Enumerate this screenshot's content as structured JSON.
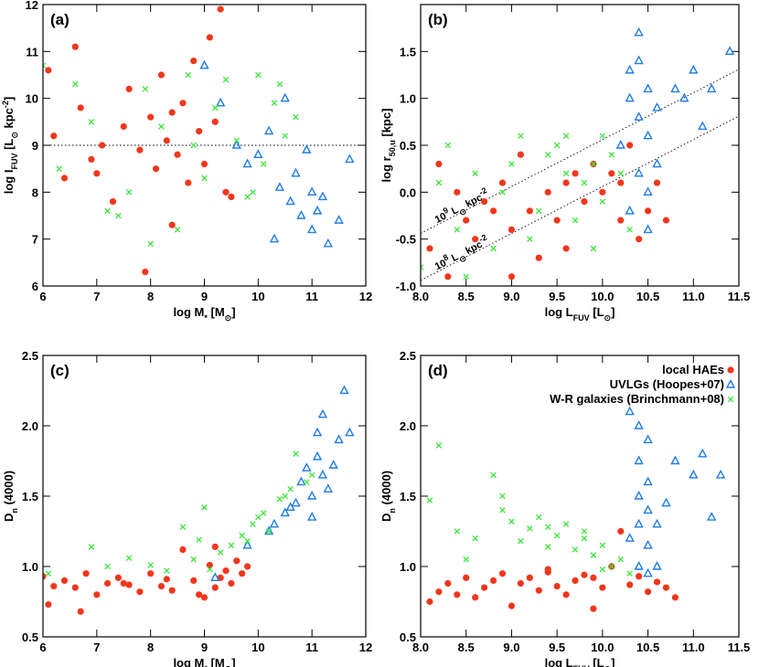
{
  "chart_data": [
    {
      "type": "scatter",
      "panel_label": "(a)",
      "xlabel": "log M_{*} [M_{⊙}]",
      "ylabel": "log I_{FUV} [L_{⊙} kpc^{-2}]",
      "xlim": [
        6,
        12
      ],
      "ylim": [
        6,
        12
      ],
      "xticks": [
        6,
        7,
        8,
        9,
        10,
        11,
        12
      ],
      "yticks": [
        6,
        7,
        8,
        9,
        10,
        11,
        12
      ],
      "reference_lines": [
        {
          "x": [
            6,
            12
          ],
          "y": [
            9,
            9
          ]
        }
      ],
      "series": [
        {
          "color": "#f2361c",
          "marker": "circle",
          "x": [
            6.1,
            6.2,
            6.4,
            6.6,
            6.7,
            6.9,
            7.1,
            7.3,
            7.5,
            7.6,
            7.8,
            7.9,
            8.0,
            8.1,
            8.2,
            8.3,
            8.4,
            8.5,
            8.6,
            8.7,
            8.8,
            8.9,
            9.0,
            9.1,
            9.2,
            9.3,
            9.4,
            9.5,
            7.0,
            8.4
          ],
          "y": [
            10.6,
            9.2,
            8.3,
            11.1,
            9.8,
            8.7,
            9.0,
            7.8,
            9.4,
            10.2,
            8.9,
            6.3,
            9.6,
            8.5,
            10.5,
            9.1,
            7.3,
            8.8,
            9.9,
            8.2,
            10.8,
            9.3,
            8.6,
            11.3,
            9.5,
            11.9,
            8.0,
            7.9,
            8.4,
            9.7
          ]
        },
        {
          "color": "#1f7ce8",
          "marker": "triangle",
          "x": [
            9.0,
            9.3,
            9.6,
            9.8,
            10.0,
            10.2,
            10.4,
            10.5,
            10.6,
            10.7,
            10.8,
            10.9,
            11.0,
            11.0,
            11.1,
            11.2,
            11.3,
            11.5,
            11.7,
            10.3
          ],
          "y": [
            10.7,
            9.9,
            9.0,
            8.6,
            8.8,
            9.3,
            8.1,
            10.0,
            7.8,
            8.4,
            7.5,
            8.9,
            7.2,
            8.0,
            7.6,
            7.9,
            6.9,
            7.4,
            8.7,
            7.0
          ]
        },
        {
          "color": "#3ae63a",
          "marker": "x",
          "x": [
            6.0,
            6.3,
            6.6,
            6.9,
            7.2,
            7.6,
            7.9,
            8.2,
            8.5,
            8.7,
            9.0,
            9.2,
            9.4,
            9.6,
            9.8,
            10.0,
            10.1,
            10.3,
            10.5,
            10.7,
            8.0,
            7.4,
            9.9,
            10.4,
            8.8
          ],
          "y": [
            10.7,
            8.5,
            10.3,
            9.5,
            7.6,
            8.0,
            10.2,
            9.4,
            7.2,
            10.5,
            8.3,
            9.8,
            10.4,
            9.1,
            7.9,
            10.5,
            8.6,
            9.9,
            9.2,
            9.6,
            6.9,
            7.5,
            8.0,
            10.3,
            9.0
          ]
        }
      ]
    },
    {
      "type": "scatter",
      "panel_label": "(b)",
      "xlabel": "log L_{FUV} [L_{⊙}]",
      "ylabel": "log r_{50,u} [kpc]",
      "xlim": [
        8.0,
        11.5
      ],
      "ylim": [
        -1.0,
        2.0
      ],
      "xticks": [
        {
          "value": 8,
          "label": "8.0"
        },
        8.5,
        {
          "value": 9,
          "label": "9.0"
        },
        9.5,
        {
          "value": 10,
          "label": "10.0"
        },
        10.5,
        {
          "value": 11,
          "label": "11.0"
        },
        11.5
      ],
      "yticks": [
        {
          "value": -1,
          "label": "-1.0"
        },
        -0.5,
        {
          "value": 0,
          "label": "0.0"
        },
        0.5,
        {
          "value": 1,
          "label": "1.0"
        },
        1.5
      ],
      "reference_lines": [
        {
          "x": [
            8.0,
            11.5
          ],
          "y": [
            -0.44,
            1.31
          ],
          "label": "10^{9} L_{⊙} kpc^{-2}"
        },
        {
          "x": [
            8.0,
            11.5
          ],
          "y": [
            -0.94,
            0.81
          ],
          "label": "10^{8} L_{⊙} kpc^{-2}"
        }
      ],
      "series": [
        {
          "color": "#f2361c",
          "marker": "circle",
          "x": [
            8.1,
            8.2,
            8.3,
            8.5,
            8.6,
            8.7,
            8.9,
            9.0,
            9.1,
            9.2,
            9.3,
            9.4,
            9.5,
            9.6,
            9.7,
            9.8,
            9.9,
            10.0,
            10.1,
            10.2,
            10.3,
            10.4,
            10.5,
            10.6,
            10.7,
            8.4,
            9.0,
            9.6,
            10.2,
            8.8
          ],
          "y": [
            -0.6,
            0.3,
            -0.9,
            -0.3,
            -0.5,
            -0.1,
            0.1,
            -0.4,
            0.4,
            -0.2,
            -0.7,
            0.0,
            -0.3,
            0.1,
            0.2,
            -0.1,
            0.3,
            0.0,
            0.2,
            -0.3,
            0.5,
            -0.5,
            -0.2,
            0.1,
            -0.3,
            0.0,
            -0.9,
            -0.6,
            0.1,
            -0.2
          ]
        },
        {
          "color": "#1f7ce8",
          "marker": "triangle",
          "x": [
            10.2,
            10.3,
            10.3,
            10.4,
            10.4,
            10.4,
            10.5,
            10.5,
            10.5,
            10.6,
            10.6,
            10.3,
            10.4,
            10.8,
            11.0,
            11.2,
            11.4,
            11.1,
            10.9,
            10.5
          ],
          "y": [
            0.5,
            1.3,
            -0.2,
            1.7,
            0.8,
            0.2,
            1.1,
            0.6,
            -0.4,
            0.9,
            0.3,
            1.0,
            1.4,
            1.1,
            1.3,
            1.1,
            1.5,
            0.7,
            1.0,
            0.0
          ]
        },
        {
          "color": "#3ae63a",
          "marker": "x",
          "x": [
            8.0,
            8.2,
            8.4,
            8.6,
            8.8,
            9.0,
            9.1,
            9.3,
            9.4,
            9.5,
            9.6,
            9.7,
            9.8,
            9.9,
            10.0,
            10.1,
            10.2,
            10.3,
            8.5,
            8.9,
            9.2,
            9.6,
            10.0,
            8.3,
            9.9
          ],
          "y": [
            -0.8,
            0.1,
            -0.4,
            0.2,
            -0.6,
            0.3,
            0.6,
            -0.2,
            0.4,
            0.5,
            0.6,
            -0.3,
            0.1,
            0.3,
            -0.1,
            0.4,
            0.2,
            -0.4,
            -0.9,
            0.0,
            -0.5,
            0.2,
            0.6,
            0.5,
            -0.6
          ]
        }
      ]
    },
    {
      "type": "scatter",
      "panel_label": "(c)",
      "xlabel": "log M_{*} [M_{⊙}]",
      "ylabel": "D_{n} (4000)",
      "xlim": [
        6,
        12
      ],
      "ylim": [
        0.5,
        2.5
      ],
      "xticks": [
        6,
        7,
        8,
        9,
        10,
        11,
        12
      ],
      "yticks": [
        0.5,
        {
          "value": 1,
          "label": "1.0"
        },
        1.5,
        {
          "value": 2,
          "label": "2.0"
        },
        2.5
      ],
      "series": [
        {
          "color": "#f2361c",
          "marker": "circle",
          "x": [
            6.0,
            6.2,
            6.4,
            6.6,
            6.8,
            7.0,
            7.2,
            7.4,
            7.6,
            7.8,
            8.0,
            8.2,
            8.4,
            8.6,
            8.8,
            9.0,
            9.1,
            9.2,
            9.3,
            9.4,
            9.5,
            9.6,
            9.7,
            9.8,
            6.1,
            6.7,
            7.5,
            8.3,
            8.9,
            9.2
          ],
          "y": [
            0.93,
            0.86,
            0.9,
            0.85,
            0.95,
            0.8,
            0.88,
            0.92,
            0.87,
            0.82,
            0.95,
            0.86,
            0.83,
            1.12,
            0.9,
            0.78,
            1.01,
            0.85,
            0.92,
            0.97,
            0.88,
            1.04,
            0.95,
            1.0,
            0.73,
            0.68,
            0.88,
            0.91,
            0.8,
            1.14
          ]
        },
        {
          "color": "#1f7ce8",
          "marker": "triangle",
          "x": [
            9.2,
            9.8,
            10.2,
            10.5,
            10.7,
            10.8,
            10.9,
            11.0,
            11.0,
            11.1,
            11.1,
            11.2,
            11.2,
            11.3,
            11.4,
            11.5,
            11.6,
            11.7,
            10.6,
            10.3
          ],
          "y": [
            0.92,
            1.15,
            1.25,
            1.38,
            1.45,
            1.6,
            1.7,
            1.35,
            1.5,
            1.95,
            1.78,
            1.65,
            2.08,
            1.55,
            1.72,
            1.9,
            2.25,
            1.95,
            1.42,
            1.3
          ]
        },
        {
          "color": "#3ae63a",
          "marker": "x",
          "x": [
            6.1,
            6.9,
            7.2,
            7.6,
            8.0,
            8.3,
            8.6,
            8.9,
            9.1,
            9.3,
            9.5,
            9.7,
            9.9,
            10.0,
            10.2,
            10.4,
            10.5,
            10.7,
            10.9,
            11.0,
            9.0,
            9.8,
            10.1,
            10.6,
            8.8
          ],
          "y": [
            0.95,
            1.14,
            1.0,
            1.06,
            1.01,
            0.97,
            1.28,
            1.19,
            0.98,
            1.1,
            1.15,
            1.22,
            1.3,
            1.35,
            1.25,
            1.48,
            1.5,
            1.8,
            1.6,
            1.65,
            1.42,
            1.18,
            1.38,
            1.55,
            1.05
          ]
        }
      ]
    },
    {
      "type": "scatter",
      "panel_label": "(d)",
      "xlabel": "log L_{FUV} [L_{⊙}]",
      "ylabel": "D_{n} (4000)",
      "xlim": [
        8.0,
        11.5
      ],
      "ylim": [
        0.5,
        2.5
      ],
      "xticks": [
        {
          "value": 8,
          "label": "8.0"
        },
        8.5,
        {
          "value": 9,
          "label": "9.0"
        },
        9.5,
        {
          "value": 10,
          "label": "10.0"
        },
        10.5,
        {
          "value": 11,
          "label": "11.0"
        },
        11.5
      ],
      "yticks": [
        0.5,
        {
          "value": 1,
          "label": "1.0"
        },
        1.5,
        {
          "value": 2,
          "label": "2.0"
        },
        2.5
      ],
      "legend": "upper right",
      "series": [
        {
          "name": "local HAEs",
          "color": "#f2361c",
          "marker": "circle",
          "x": [
            8.1,
            8.2,
            8.3,
            8.4,
            8.5,
            8.6,
            8.7,
            8.8,
            8.9,
            9.0,
            9.1,
            9.2,
            9.3,
            9.4,
            9.5,
            9.6,
            9.7,
            9.8,
            9.9,
            10.0,
            10.1,
            10.2,
            10.3,
            10.4,
            10.5,
            10.6,
            10.7,
            10.8,
            9.4,
            9.9
          ],
          "y": [
            0.75,
            0.82,
            0.88,
            0.8,
            0.92,
            0.78,
            0.85,
            0.9,
            0.95,
            0.72,
            0.88,
            0.92,
            0.83,
            0.98,
            0.86,
            0.8,
            0.9,
            0.94,
            0.7,
            0.85,
            1.0,
            1.25,
            0.87,
            0.93,
            0.82,
            0.89,
            0.85,
            0.78,
            0.96,
            0.92
          ]
        },
        {
          "name": "UVLGs (Hoopes+07)",
          "color": "#1f7ce8",
          "marker": "triangle",
          "x": [
            10.3,
            10.3,
            10.4,
            10.4,
            10.4,
            10.4,
            10.5,
            10.5,
            10.5,
            10.5,
            10.6,
            10.6,
            10.4,
            10.7,
            10.8,
            11.0,
            11.1,
            11.3,
            11.2,
            10.5
          ],
          "y": [
            1.2,
            2.1,
            1.75,
            1.5,
            1.3,
            1.0,
            1.9,
            1.6,
            1.15,
            1.4,
            1.3,
            1.0,
            2.0,
            1.45,
            1.75,
            1.65,
            1.8,
            1.65,
            1.35,
            0.95
          ]
        },
        {
          "name": "W-R galaxies (Brinchmann+08)",
          "color": "#3ae63a",
          "marker": "x",
          "x": [
            8.1,
            8.2,
            8.4,
            8.6,
            8.8,
            8.9,
            9.0,
            9.1,
            9.2,
            9.3,
            9.4,
            9.5,
            9.6,
            9.7,
            9.8,
            9.9,
            10.0,
            10.1,
            10.2,
            10.3,
            8.5,
            8.9,
            9.4,
            9.8,
            10.0
          ],
          "y": [
            1.47,
            1.86,
            1.25,
            1.2,
            1.65,
            1.4,
            1.32,
            1.18,
            1.27,
            1.35,
            1.14,
            1.22,
            1.3,
            1.12,
            1.25,
            1.08,
            1.15,
            1.0,
            1.05,
            0.95,
            1.05,
            1.5,
            1.28,
            1.2,
            0.98
          ]
        }
      ]
    }
  ]
}
